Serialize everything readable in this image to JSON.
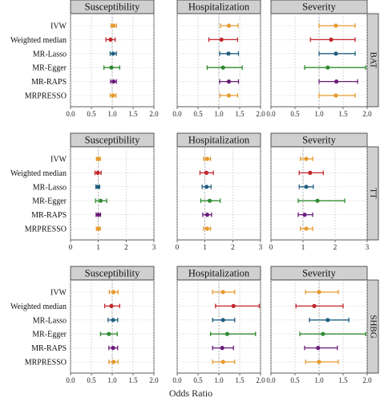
{
  "chart_data": {
    "type": "forest",
    "xlabel": "Odds Ratio",
    "methods": [
      "IVW",
      "Weighted median",
      "MR-Lasso",
      "MR-Egger",
      "MR-RAPS",
      "MRPRESSO"
    ],
    "method_colors": [
      "#E69A2E",
      "#C1262C",
      "#1F5F7F",
      "#2E8B2E",
      "#6A1B7A",
      "#E69A2E"
    ],
    "outcomes": [
      "Susceptibility",
      "Hospitalization",
      "Severity"
    ],
    "grid": true,
    "reference_line": 1.0,
    "panels": [
      {
        "exposure": "BAT",
        "xlim": [
          0,
          2
        ],
        "xticks": [
          "0.0",
          "0.5",
          "1.0",
          "1.5",
          "2.0"
        ],
        "xtick_values": [
          0,
          0.5,
          1,
          1.5,
          2
        ],
        "outcomes": [
          {
            "name": "Susceptibility",
            "points": [
              {
                "or": 1.03,
                "lo": 0.97,
                "hi": 1.1
              },
              {
                "or": 0.96,
                "lo": 0.85,
                "hi": 1.07
              },
              {
                "or": 1.02,
                "lo": 0.95,
                "hi": 1.1
              },
              {
                "or": 0.98,
                "lo": 0.8,
                "hi": 1.18
              },
              {
                "or": 1.03,
                "lo": 0.96,
                "hi": 1.1
              },
              {
                "or": 1.02,
                "lo": 0.95,
                "hi": 1.09
              }
            ]
          },
          {
            "name": "Hospitalization",
            "points": [
              {
                "or": 1.24,
                "lo": 1.04,
                "hi": 1.46
              },
              {
                "or": 1.06,
                "lo": 0.76,
                "hi": 1.45
              },
              {
                "or": 1.23,
                "lo": 1.02,
                "hi": 1.47
              },
              {
                "or": 1.1,
                "lo": 0.72,
                "hi": 1.56
              },
              {
                "or": 1.24,
                "lo": 1.02,
                "hi": 1.47
              },
              {
                "or": 1.24,
                "lo": 1.03,
                "hi": 1.45
              }
            ]
          },
          {
            "name": "Severity",
            "points": [
              {
                "or": 1.35,
                "lo": 1.0,
                "hi": 1.75
              },
              {
                "or": 1.25,
                "lo": 0.82,
                "hi": 1.75
              },
              {
                "or": 1.35,
                "lo": 1.0,
                "hi": 1.75
              },
              {
                "or": 1.18,
                "lo": 0.7,
                "hi": 1.97
              },
              {
                "or": 1.36,
                "lo": 1.0,
                "hi": 1.8
              },
              {
                "or": 1.35,
                "lo": 1.0,
                "hi": 1.75
              }
            ]
          }
        ]
      },
      {
        "exposure": "TT",
        "xlim": [
          0,
          3
        ],
        "xticks": [
          "0",
          "1",
          "2",
          "3"
        ],
        "xtick_values": [
          0,
          1,
          2,
          3
        ],
        "outcomes": [
          {
            "name": "Susceptibility",
            "points": [
              {
                "or": 1.0,
                "lo": 0.93,
                "hi": 1.07
              },
              {
                "or": 0.98,
                "lo": 0.88,
                "hi": 1.1
              },
              {
                "or": 0.98,
                "lo": 0.91,
                "hi": 1.05
              },
              {
                "or": 1.08,
                "lo": 0.9,
                "hi": 1.3
              },
              {
                "or": 1.0,
                "lo": 0.92,
                "hi": 1.08
              },
              {
                "or": 1.0,
                "lo": 0.93,
                "hi": 1.07
              }
            ]
          },
          {
            "name": "Hospitalization",
            "points": [
              {
                "or": 1.08,
                "lo": 0.95,
                "hi": 1.2
              },
              {
                "or": 1.05,
                "lo": 0.82,
                "hi": 1.3
              },
              {
                "or": 1.06,
                "lo": 0.9,
                "hi": 1.22
              },
              {
                "or": 1.17,
                "lo": 0.85,
                "hi": 1.55
              },
              {
                "or": 1.08,
                "lo": 0.92,
                "hi": 1.24
              },
              {
                "or": 1.08,
                "lo": 0.95,
                "hi": 1.2
              }
            ]
          },
          {
            "name": "Severity",
            "points": [
              {
                "or": 1.1,
                "lo": 0.92,
                "hi": 1.3
              },
              {
                "or": 1.22,
                "lo": 0.88,
                "hi": 1.63
              },
              {
                "or": 1.1,
                "lo": 0.88,
                "hi": 1.32
              },
              {
                "or": 1.45,
                "lo": 0.85,
                "hi": 2.3
              },
              {
                "or": 1.05,
                "lo": 0.85,
                "hi": 1.3
              },
              {
                "or": 1.1,
                "lo": 0.92,
                "hi": 1.3
              }
            ]
          }
        ]
      },
      {
        "exposure": "SHBG",
        "xlim": [
          0,
          2
        ],
        "xticks": [
          "0.0",
          "0.5",
          "1.0",
          "1.5",
          "2.0"
        ],
        "xtick_values": [
          0,
          0.5,
          1,
          1.5,
          2
        ],
        "outcomes": [
          {
            "name": "Susceptibility",
            "points": [
              {
                "or": 1.03,
                "lo": 0.93,
                "hi": 1.14
              },
              {
                "or": 0.98,
                "lo": 0.82,
                "hi": 1.18
              },
              {
                "or": 1.02,
                "lo": 0.9,
                "hi": 1.13
              },
              {
                "or": 0.92,
                "lo": 0.72,
                "hi": 1.12
              },
              {
                "or": 1.02,
                "lo": 0.92,
                "hi": 1.13
              },
              {
                "or": 1.03,
                "lo": 0.92,
                "hi": 1.14
              }
            ]
          },
          {
            "name": "Hospitalization",
            "points": [
              {
                "or": 1.1,
                "lo": 0.85,
                "hi": 1.38
              },
              {
                "or": 1.35,
                "lo": 0.92,
                "hi": 1.97
              },
              {
                "or": 1.1,
                "lo": 0.85,
                "hi": 1.38
              },
              {
                "or": 1.2,
                "lo": 0.8,
                "hi": 1.88
              },
              {
                "or": 1.08,
                "lo": 0.85,
                "hi": 1.35
              },
              {
                "or": 1.1,
                "lo": 0.85,
                "hi": 1.38
              }
            ]
          },
          {
            "name": "Severity",
            "points": [
              {
                "or": 1.0,
                "lo": 0.72,
                "hi": 1.4
              },
              {
                "or": 0.9,
                "lo": 0.52,
                "hi": 1.5
              },
              {
                "or": 1.18,
                "lo": 0.8,
                "hi": 1.62
              },
              {
                "or": 1.08,
                "lo": 0.6,
                "hi": 1.97
              },
              {
                "or": 0.98,
                "lo": 0.7,
                "hi": 1.38
              },
              {
                "or": 1.0,
                "lo": 0.72,
                "hi": 1.4
              }
            ]
          }
        ]
      }
    ]
  }
}
